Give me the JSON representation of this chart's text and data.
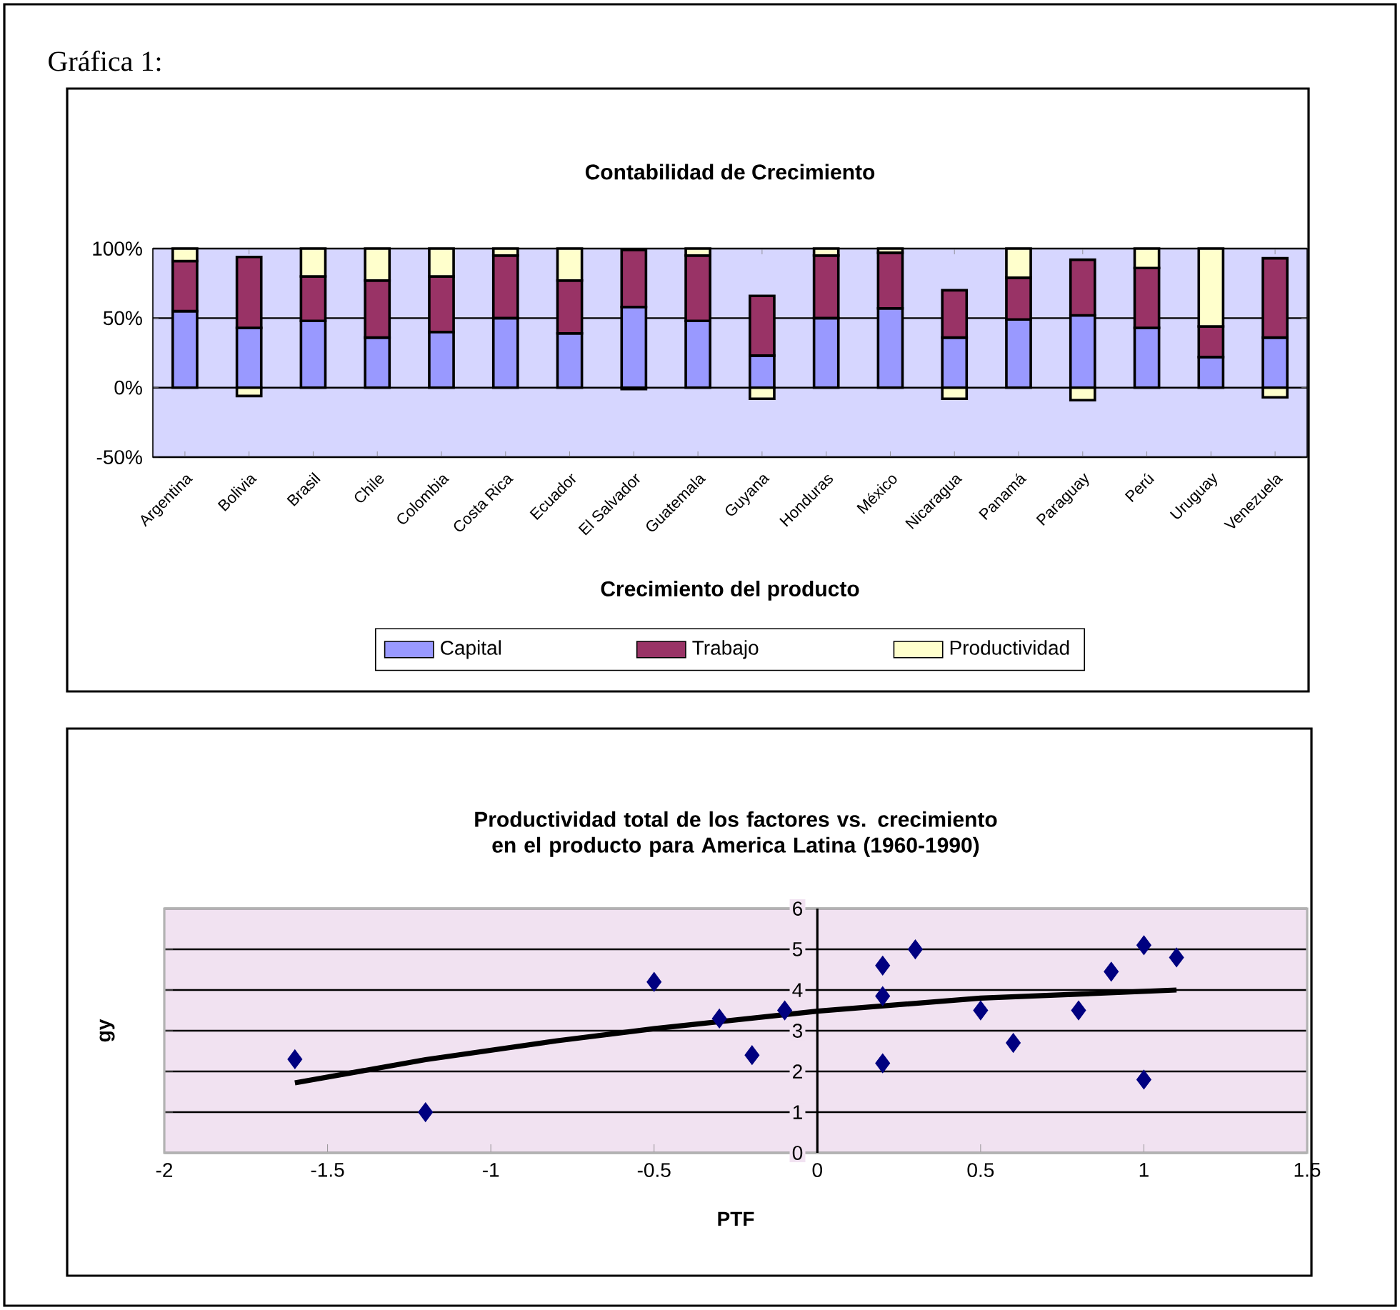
{
  "chart_data": [
    {
      "type": "bar",
      "title": "Contabilidad de Crecimiento",
      "xlabel": "Crecimiento del producto",
      "annotations": [
        "Gráfica 1:"
      ],
      "categories": [
        "Argentina",
        "Bolivia",
        "Brasil",
        "Chile",
        "Colombia",
        "Costa Rica",
        "Ecuador",
        "El Salvador",
        "Guatemala",
        "Guyana",
        "Honduras",
        "México",
        "Nicaragua",
        "Panamá",
        "Paraguay",
        "Perú",
        "Uruguay",
        "Venezuela"
      ],
      "series": [
        {
          "name": "Capital",
          "color": "#9999ff",
          "values": [
            55,
            43,
            48,
            36,
            40,
            50,
            39,
            58,
            48,
            23,
            50,
            57,
            36,
            49,
            52,
            43,
            22,
            36
          ]
        },
        {
          "name": "Trabajo",
          "color": "#993366",
          "values": [
            36,
            51,
            32,
            41,
            40,
            45,
            38,
            41,
            47,
            43,
            45,
            40,
            34,
            30,
            40,
            43,
            22,
            57
          ]
        },
        {
          "name": "Productividad",
          "color": "#ffffcc",
          "values": [
            9,
            -6,
            20,
            23,
            20,
            5,
            23,
            -1,
            5,
            -8,
            5,
            3,
            -8,
            21,
            -9,
            14,
            56,
            -7
          ]
        }
      ],
      "stacked": true,
      "ylim": [
        -50,
        100
      ],
      "yticks": [
        {
          "value": -50,
          "label": "-50%"
        },
        {
          "value": 0,
          "label": "0%"
        },
        {
          "value": 50,
          "label": "50%"
        },
        {
          "value": 100,
          "label": "100%"
        }
      ],
      "grid": "y",
      "legend": "bottom"
    },
    {
      "type": "scatter",
      "title": "Productividad total de los factores vs. crecimiento en el producto para America Latina (1960-1990)",
      "xlabel": "PTF",
      "ylabel": "gy",
      "series": [
        {
          "type": "scatter",
          "color": "#000080",
          "x": [
            -1.6,
            -1.2,
            -0.5,
            -0.3,
            -0.2,
            -0.1,
            0.2,
            0.2,
            0.2,
            0.3,
            0.5,
            0.6,
            0.8,
            0.9,
            1.0,
            1.0,
            1.1
          ],
          "values": [
            2.3,
            1.0,
            4.2,
            3.3,
            2.4,
            3.5,
            4.6,
            3.85,
            2.2,
            5.0,
            3.5,
            2.7,
            3.5,
            4.45,
            5.1,
            1.8,
            4.8
          ]
        },
        {
          "type": "line",
          "color": "#000000",
          "marker": "none",
          "x": [
            -1.6,
            -1.2,
            -0.8,
            -0.5,
            0,
            0.5,
            1.1
          ],
          "values": [
            1.72,
            2.29,
            2.75,
            3.05,
            3.48,
            3.8,
            4.0
          ]
        }
      ],
      "marker": "diamond",
      "xlim": [
        -2,
        1.5
      ],
      "ylim": [
        0,
        6
      ],
      "xticks": [
        -2,
        -1.5,
        -1,
        -0.5,
        0,
        0.5,
        1,
        1.5
      ],
      "yticks": [
        0,
        1,
        2,
        3,
        4,
        5,
        6
      ],
      "grid": "y"
    }
  ]
}
